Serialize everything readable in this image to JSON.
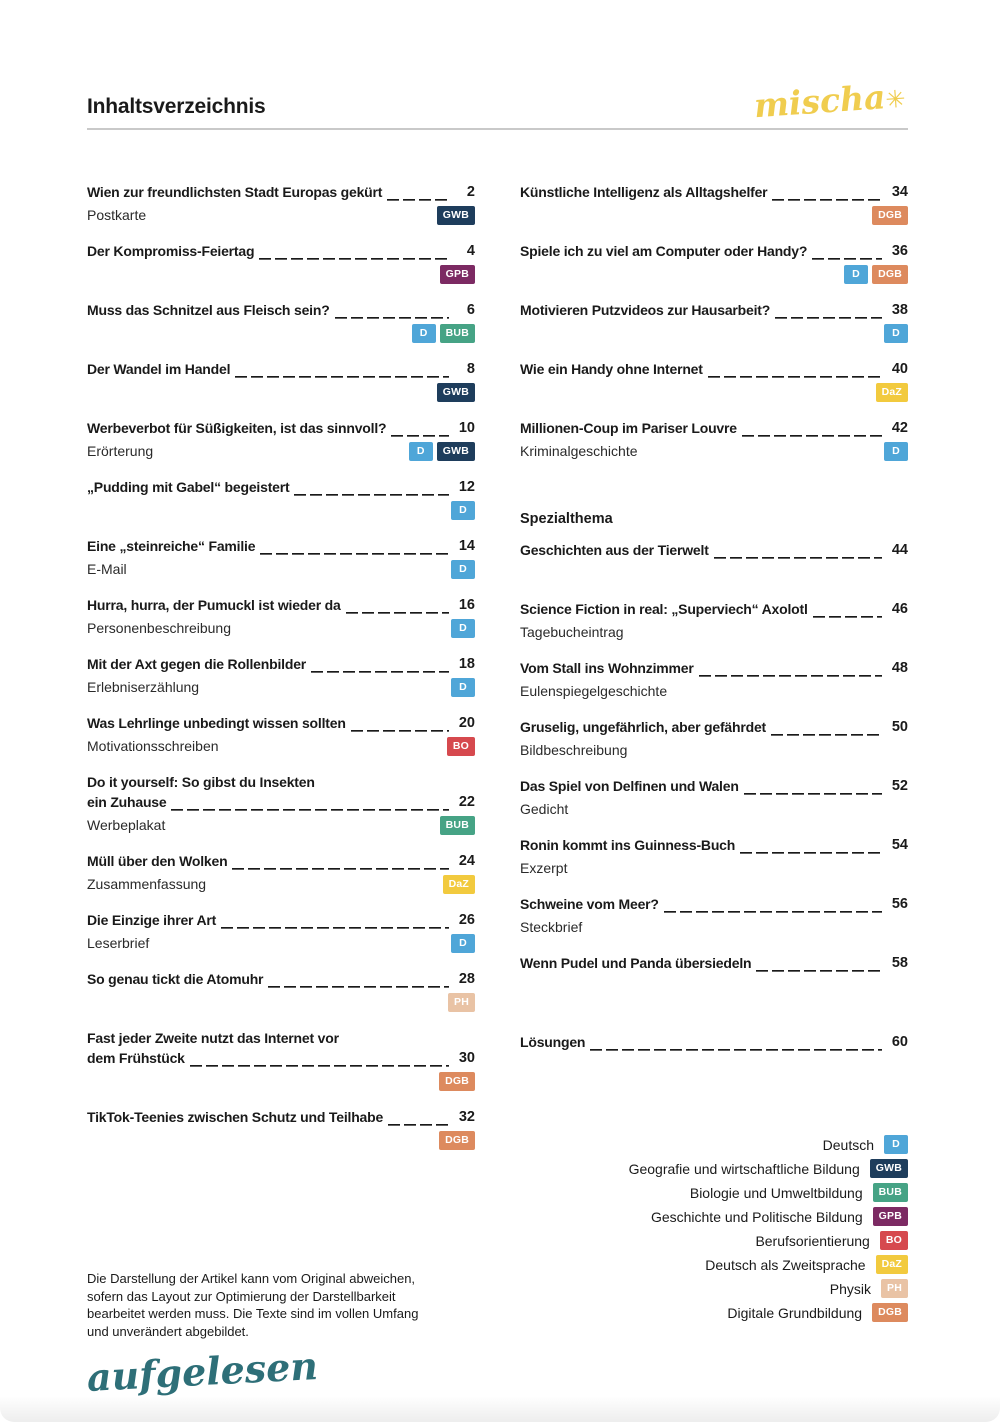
{
  "page": {
    "title": "Inhaltsverzeichnis",
    "brand": "mischa",
    "brand_mark": "✳"
  },
  "badge_colors": {
    "D": "#4fa6d8",
    "GWB": "#1e3d5c",
    "BUB": "#46a385",
    "GPB": "#7c2a63",
    "BO": "#d6494e",
    "DaZ": "#f2ca3e",
    "PH": "#e9c3a5",
    "DGB": "#dd8a5e"
  },
  "columns": {
    "left": [
      {
        "title_lines": [
          "Wien zur freundlichsten Stadt Europas gekürt"
        ],
        "page": "2",
        "subtitle": "Postkarte",
        "badges": [
          "GWB"
        ]
      },
      {
        "title_lines": [
          "Der Kompromiss-Feiertag"
        ],
        "page": "4",
        "badges": [
          "GPB"
        ]
      },
      {
        "title_lines": [
          "Muss das Schnitzel aus Fleisch sein?"
        ],
        "page": "6",
        "badges": [
          "D",
          "BUB"
        ]
      },
      {
        "title_lines": [
          "Der Wandel im Handel"
        ],
        "page": "8",
        "badges": [
          "GWB"
        ]
      },
      {
        "title_lines": [
          "Werbeverbot für Süßigkeiten, ist das sinnvoll?"
        ],
        "page": "10",
        "subtitle": "Erörterung",
        "badges": [
          "D",
          "GWB"
        ]
      },
      {
        "title_lines": [
          "„Pudding mit Gabel“ begeistert"
        ],
        "page": "12",
        "badges": [
          "D"
        ]
      },
      {
        "title_lines": [
          "Eine „steinreiche“ Familie"
        ],
        "page": "14",
        "subtitle": "E-Mail",
        "badges": [
          "D"
        ]
      },
      {
        "title_lines": [
          "Hurra, hurra, der Pumuckl ist wieder da"
        ],
        "page": "16",
        "subtitle": "Personenbeschreibung",
        "badges": [
          "D"
        ]
      },
      {
        "title_lines": [
          "Mit der Axt gegen die Rollenbilder"
        ],
        "page": "18",
        "subtitle": "Erlebniserzählung",
        "badges": [
          "D"
        ]
      },
      {
        "title_lines": [
          "Was Lehrlinge unbedingt wissen sollten"
        ],
        "page": "20",
        "subtitle": "Motivationsschreiben",
        "badges": [
          "BO"
        ]
      },
      {
        "title_lines": [
          "Do it yourself: So gibst du Insekten",
          "ein Zuhause"
        ],
        "page": "22",
        "subtitle": "Werbeplakat",
        "badges": [
          "BUB"
        ]
      },
      {
        "title_lines": [
          "Müll über den Wolken"
        ],
        "page": "24",
        "subtitle": "Zusammenfassung",
        "badges": [
          "DaZ"
        ]
      },
      {
        "title_lines": [
          "Die Einzige ihrer Art"
        ],
        "page": "26",
        "subtitle": "Leserbrief",
        "badges": [
          "D"
        ]
      },
      {
        "title_lines": [
          "So genau tickt die Atomuhr"
        ],
        "page": "28",
        "badges": [
          "PH"
        ]
      },
      {
        "title_lines": [
          "Fast jeder Zweite nutzt das Internet vor",
          "dem Frühstück"
        ],
        "page": "30",
        "badges": [
          "DGB"
        ]
      },
      {
        "title_lines": [
          "TikTok-Teenies zwischen Schutz und Teilhabe"
        ],
        "page": "32",
        "badges": [
          "DGB"
        ]
      }
    ],
    "right": [
      {
        "title_lines": [
          "Künstliche Intelligenz als Alltagshelfer"
        ],
        "page": "34",
        "badges": [
          "DGB"
        ]
      },
      {
        "title_lines": [
          "Spiele ich zu viel am Computer oder Handy?"
        ],
        "page": "36",
        "badges": [
          "D",
          "DGB"
        ]
      },
      {
        "title_lines": [
          "Motivieren Putzvideos zur Hausarbeit?"
        ],
        "page": "38",
        "badges": [
          "D"
        ]
      },
      {
        "title_lines": [
          "Wie ein Handy ohne Internet"
        ],
        "page": "40",
        "badges": [
          "DaZ"
        ]
      },
      {
        "title_lines": [
          "Millionen-Coup im Pariser Louvre"
        ],
        "page": "42",
        "subtitle": "Kriminalgeschichte",
        "badges": [
          "D"
        ]
      },
      {
        "type": "section",
        "title": "Spezialthema",
        "space_before": 32
      },
      {
        "title_lines": [
          "Geschichten aus der Tierwelt"
        ],
        "page": "44"
      },
      {
        "title_lines": [
          "Science Fiction in real: „Superviech“ Axolotl"
        ],
        "page": "46",
        "subtitle": "Tagebucheintrag"
      },
      {
        "title_lines": [
          "Vom Stall ins Wohnzimmer"
        ],
        "page": "48",
        "subtitle": "Eulenspiegelgeschichte"
      },
      {
        "title_lines": [
          "Gruselig, ungefährlich, aber gefährdet"
        ],
        "page": "50",
        "subtitle": "Bildbeschreibung"
      },
      {
        "title_lines": [
          "Das Spiel von Delfinen und Walen"
        ],
        "page": "52",
        "subtitle": "Gedicht"
      },
      {
        "title_lines": [
          "Ronin kommt ins Guinness-Buch"
        ],
        "page": "54",
        "subtitle": "Exzerpt"
      },
      {
        "title_lines": [
          "Schweine vom Meer?"
        ],
        "page": "56",
        "subtitle": "Steckbrief"
      },
      {
        "title_lines": [
          "Wenn Pudel und Panda übersiedeln"
        ],
        "page": "58"
      },
      {
        "title_lines": [
          "Lösungen"
        ],
        "page": "60",
        "space_before": 20
      }
    ]
  },
  "legend": {
    "items": [
      {
        "label": "Deutsch",
        "code": "D"
      },
      {
        "label": "Geografie und wirtschaftliche Bildung",
        "code": "GWB"
      },
      {
        "label": "Biologie und Umweltbildung",
        "code": "BUB"
      },
      {
        "label": "Geschichte und Politische Bildung",
        "code": "GPB"
      },
      {
        "label": "Berufsorientierung",
        "code": "BO"
      },
      {
        "label": "Deutsch als Zweitsprache",
        "code": "DaZ"
      },
      {
        "label": "Physik",
        "code": "PH"
      },
      {
        "label": "Digitale Grundbildung",
        "code": "DGB"
      }
    ]
  },
  "footer": {
    "disclaimer_lines": [
      "Die Darstellung der Artikel kann vom Original abweichen,",
      "sofern das Layout zur Optimierung der Darstellbarkeit",
      "bearbeitet werden muss. Die Texte sind im vollen Umfang",
      "und unverändert abgebildet."
    ],
    "logo": "aufgelesen"
  }
}
